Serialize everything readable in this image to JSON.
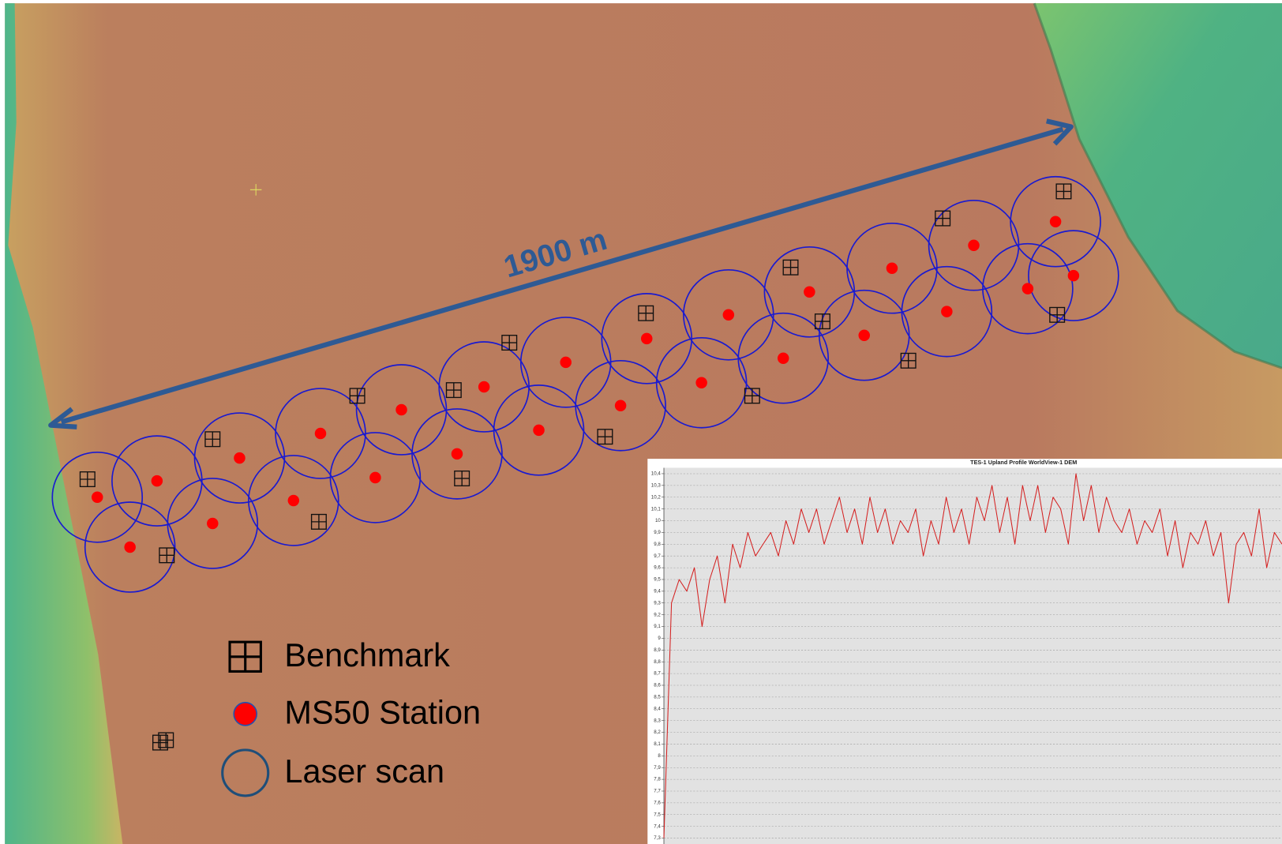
{
  "map": {
    "distance_label": "1900 m"
  },
  "legend": [
    {
      "label": "Benchmark"
    },
    {
      "label": "MS50 Station"
    },
    {
      "label": "Laser scan"
    }
  ],
  "chart_data": {
    "type": "line",
    "title": "TES-1 Upland Profile WorldView-1 DEM",
    "color": "#d42020",
    "grid": true,
    "values": [
      7.3,
      9.3,
      9.5,
      9.4,
      9.6,
      9.1,
      9.5,
      9.7,
      9.3,
      9.8,
      9.6,
      9.9,
      9.7,
      9.8,
      9.9,
      9.7,
      10.0,
      9.8,
      10.1,
      9.9,
      10.1,
      9.8,
      10.0,
      10.2,
      9.9,
      10.1,
      9.8,
      10.2,
      9.9,
      10.1,
      9.8,
      10.0,
      9.9,
      10.1,
      9.7,
      10.0,
      9.8,
      10.2,
      9.9,
      10.1,
      9.8,
      10.2,
      10.0,
      10.3,
      9.9,
      10.2,
      9.8,
      10.3,
      10.0,
      10.3,
      9.9,
      10.2,
      10.1,
      9.8,
      10.4,
      10.0,
      10.3,
      9.9,
      10.2,
      10.0,
      9.9,
      10.1,
      9.8,
      10.0,
      9.9,
      10.1,
      9.7,
      10.0,
      9.6,
      9.9,
      9.8,
      10.0,
      9.7,
      9.9,
      9.3,
      9.8,
      9.9,
      9.7,
      10.1,
      9.6,
      9.9,
      9.8
    ],
    "ylim": [
      7.25,
      10.45
    ],
    "yticks": [
      {
        "value": 10.4,
        "label": "10,4"
      },
      {
        "value": 10.3,
        "label": "10,3"
      },
      {
        "value": 10.2,
        "label": "10,2"
      },
      {
        "value": 10.1,
        "label": "10,1"
      },
      10,
      {
        "value": 9.9,
        "label": "9,9"
      },
      {
        "value": 9.8,
        "label": "9,8"
      },
      {
        "value": 9.7,
        "label": "9,7"
      },
      {
        "value": 9.6,
        "label": "9,6"
      },
      {
        "value": 9.5,
        "label": "9,5"
      },
      {
        "value": 9.4,
        "label": "9,4"
      },
      {
        "value": 9.3,
        "label": "9,3"
      },
      {
        "value": 9.2,
        "label": "9,2"
      },
      {
        "value": 9.1,
        "label": "9,1"
      },
      9,
      {
        "value": 8.9,
        "label": "8,9"
      },
      {
        "value": 8.8,
        "label": "8,8"
      },
      {
        "value": 8.7,
        "label": "8,7"
      },
      {
        "value": 8.6,
        "label": "8,6"
      },
      {
        "value": 8.5,
        "label": "8,5"
      },
      {
        "value": 8.4,
        "label": "8,4"
      },
      {
        "value": 8.3,
        "label": "8,3"
      },
      {
        "value": 8.2,
        "label": "8,2"
      },
      {
        "value": 8.1,
        "label": "8,1"
      },
      8,
      {
        "value": 7.9,
        "label": "7,9"
      },
      {
        "value": 7.8,
        "label": "7,8"
      },
      {
        "value": 7.7,
        "label": "7,7"
      },
      {
        "value": 7.6,
        "label": "7,6"
      },
      {
        "value": 7.5,
        "label": "7,5"
      },
      {
        "value": 7.4,
        "label": "7,4"
      },
      {
        "value": 7.3,
        "label": "7,3"
      }
    ]
  }
}
